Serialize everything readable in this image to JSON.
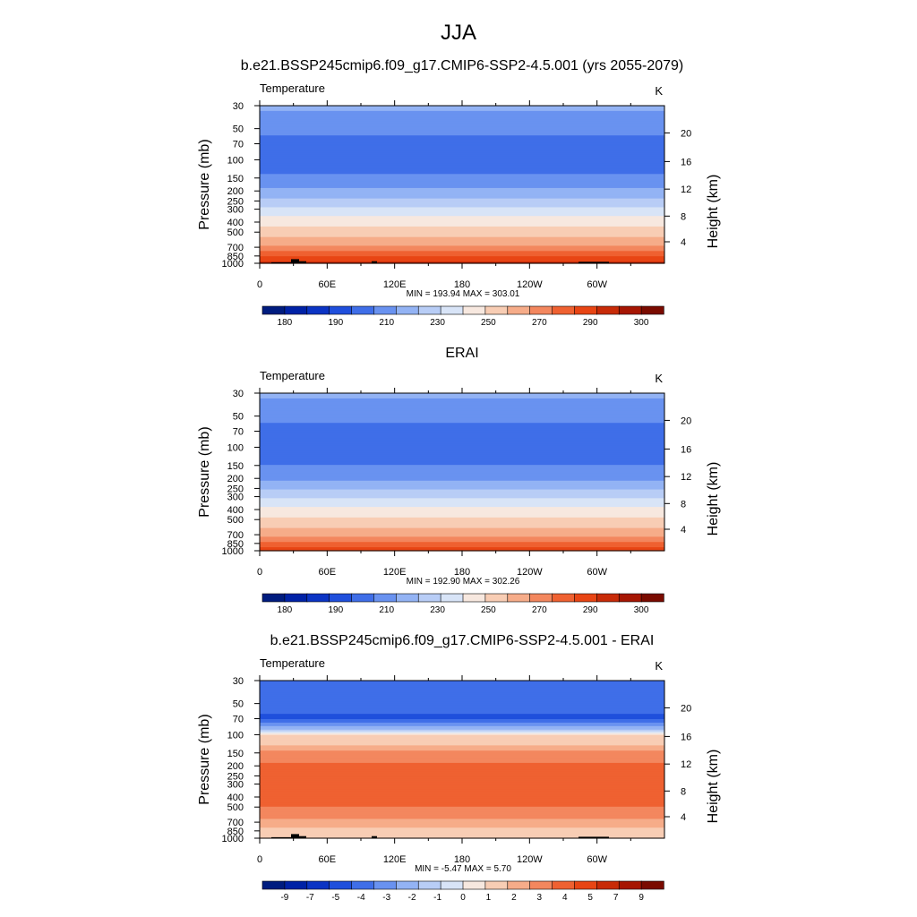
{
  "figure_title": "JJA",
  "colors": {
    "abs_palette": [
      "#001c7f",
      "#0022a6",
      "#0b34c4",
      "#1f4fdc",
      "#3f6ee8",
      "#6992f0",
      "#93b3f4",
      "#b8cdf6",
      "#d8e4f7",
      "#f7e8df",
      "#f8cdb4",
      "#f6ac89",
      "#f3875e",
      "#ef6131",
      "#e84514",
      "#c82b08",
      "#a61603",
      "#7a0b00"
    ],
    "diff_palette": [
      "#001c7f",
      "#0022a6",
      "#0b34c4",
      "#1f4fdc",
      "#3f6ee8",
      "#6992f0",
      "#93b3f4",
      "#b8cdf6",
      "#d8e4f7",
      "#f7e8df",
      "#f8cdb4",
      "#f6ac89",
      "#f3875e",
      "#ef6131",
      "#e84514",
      "#c82b08",
      "#a61603",
      "#7a0b00"
    ],
    "terrain": "#000000"
  },
  "chart_data": [
    {
      "type": "heatmap",
      "title": "b.e21.BSSP245cmip6.f09_g17.CMIP6-SSP2-4.5.001 (yrs 2055-2079)",
      "field_label": "Temperature",
      "units": "K",
      "ylabel": "Pressure (mb)",
      "ylabel_right": "Height (km)",
      "x_ticks": [
        "0",
        "60E",
        "120E",
        "180",
        "120W",
        "60W"
      ],
      "y_ticks": [
        "30",
        "50",
        "70",
        "100",
        "150",
        "200",
        "250",
        "300",
        "400",
        "500",
        "700",
        "850",
        "1000"
      ],
      "y_ticks_right": [
        "20",
        "16",
        "12",
        "8",
        "4"
      ],
      "stats": "MIN = 193.94  MAX = 303.01",
      "colorbar_labels": [
        "180",
        "190",
        "210",
        "230",
        "250",
        "270",
        "290",
        "300"
      ],
      "profile": [
        {
          "p": 30,
          "v": 222
        },
        {
          "p": 50,
          "v": 214
        },
        {
          "p": 70,
          "v": 205
        },
        {
          "p": 100,
          "v": 201
        },
        {
          "p": 150,
          "v": 212
        },
        {
          "p": 200,
          "v": 222
        },
        {
          "p": 250,
          "v": 233
        },
        {
          "p": 300,
          "v": 243
        },
        {
          "p": 400,
          "v": 256
        },
        {
          "p": 500,
          "v": 265
        },
        {
          "p": 700,
          "v": 281
        },
        {
          "p": 850,
          "v": 289
        },
        {
          "p": 1000,
          "v": 296
        }
      ]
    },
    {
      "type": "heatmap",
      "title": "ERAI",
      "field_label": "Temperature",
      "units": "K",
      "ylabel": "Pressure (mb)",
      "ylabel_right": "Height (km)",
      "x_ticks": [
        "0",
        "60E",
        "120E",
        "180",
        "120W",
        "60W"
      ],
      "y_ticks": [
        "30",
        "50",
        "70",
        "100",
        "150",
        "200",
        "250",
        "300",
        "400",
        "500",
        "700",
        "850",
        "1000"
      ],
      "y_ticks_right": [
        "20",
        "16",
        "12",
        "8",
        "4"
      ],
      "stats": "MIN = 192.90  MAX = 302.26",
      "colorbar_labels": [
        "180",
        "190",
        "210",
        "230",
        "250",
        "270",
        "290",
        "300"
      ],
      "profile": [
        {
          "p": 30,
          "v": 222
        },
        {
          "p": 50,
          "v": 214
        },
        {
          "p": 70,
          "v": 205
        },
        {
          "p": 100,
          "v": 201
        },
        {
          "p": 150,
          "v": 210
        },
        {
          "p": 200,
          "v": 218
        },
        {
          "p": 250,
          "v": 228
        },
        {
          "p": 300,
          "v": 238
        },
        {
          "p": 400,
          "v": 252
        },
        {
          "p": 500,
          "v": 262
        },
        {
          "p": 700,
          "v": 278
        },
        {
          "p": 850,
          "v": 286
        },
        {
          "p": 1000,
          "v": 293
        }
      ]
    },
    {
      "type": "heatmap",
      "title": "b.e21.BSSP245cmip6.f09_g17.CMIP6-SSP2-4.5.001 - ERAI",
      "field_label": "Temperature",
      "units": "K",
      "ylabel": "Pressure (mb)",
      "ylabel_right": "Height (km)",
      "x_ticks": [
        "0",
        "60E",
        "120E",
        "180",
        "120W",
        "60W"
      ],
      "y_ticks": [
        "30",
        "50",
        "70",
        "100",
        "150",
        "200",
        "250",
        "300",
        "400",
        "500",
        "700",
        "850",
        "1000"
      ],
      "y_ticks_right": [
        "20",
        "16",
        "12",
        "8",
        "4"
      ],
      "stats": "MIN =  -5.47  MAX =   5.70",
      "colorbar_labels": [
        "-9",
        "-7",
        "-5",
        "-4",
        "-3",
        "-2",
        "-1",
        "0",
        "1",
        "2",
        "3",
        "4",
        "5",
        "7",
        "9"
      ],
      "profile": [
        {
          "p": 30,
          "v": -4.5
        },
        {
          "p": 50,
          "v": -4.5
        },
        {
          "p": 70,
          "v": -5.2
        },
        {
          "p": 90,
          "v": -2.0
        },
        {
          "p": 100,
          "v": 1.0
        },
        {
          "p": 120,
          "v": 1.5
        },
        {
          "p": 150,
          "v": 3.5
        },
        {
          "p": 200,
          "v": 4.2
        },
        {
          "p": 300,
          "v": 4.2
        },
        {
          "p": 400,
          "v": 4.2
        },
        {
          "p": 500,
          "v": 4.0
        },
        {
          "p": 700,
          "v": 2.8
        },
        {
          "p": 850,
          "v": 1.6
        },
        {
          "p": 1000,
          "v": 1.0
        }
      ]
    }
  ]
}
